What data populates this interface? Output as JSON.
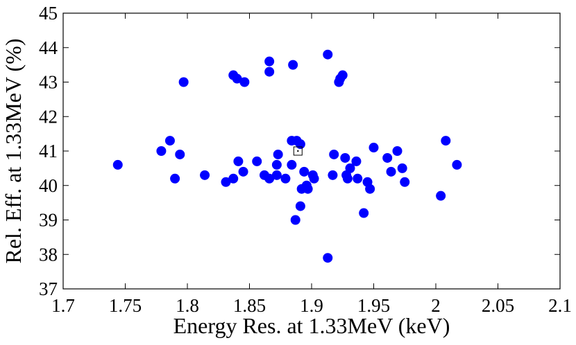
{
  "chart_data": {
    "type": "scatter",
    "x_label": "Energy Res. at 1.33MeV (keV)",
    "y_label": "Rel. Eff. at 1.33MeV (%)",
    "xlim": [
      1.7,
      2.1
    ],
    "ylim": [
      37,
      45
    ],
    "xticks": [
      1.7,
      1.75,
      1.8,
      1.85,
      1.9,
      1.95,
      2,
      2.05,
      2.1
    ],
    "yticks": [
      37,
      38,
      39,
      40,
      41,
      42,
      43,
      44,
      45
    ],
    "grid": false,
    "series": [
      {
        "color": "#0000ff",
        "marker": "circle",
        "x": [
          1.744,
          1.779,
          1.786,
          1.794,
          1.79,
          1.797,
          1.814,
          1.831,
          1.837,
          1.837,
          1.84,
          1.841,
          1.845,
          1.846,
          1.856,
          1.862,
          1.866,
          1.866,
          1.866,
          1.872,
          1.872,
          1.873,
          1.879,
          1.884,
          1.884,
          1.885,
          1.888,
          1.887,
          1.891,
          1.891,
          1.892,
          1.894,
          1.896,
          1.897,
          1.901,
          1.902,
          1.913,
          1.913,
          1.917,
          1.918,
          1.922,
          1.923,
          1.925,
          1.927,
          1.928,
          1.929,
          1.931,
          1.936,
          1.937,
          1.942,
          1.945,
          1.947,
          1.95,
          1.961,
          1.964,
          1.969,
          1.973,
          1.975,
          2.004,
          2.008,
          2.017
        ],
        "values": [
          40.6,
          41.0,
          41.3,
          40.9,
          40.2,
          43.0,
          40.3,
          40.1,
          40.2,
          43.2,
          43.1,
          40.7,
          40.4,
          43.0,
          40.7,
          40.3,
          43.6,
          43.3,
          40.2,
          40.6,
          40.3,
          40.9,
          40.2,
          41.3,
          40.6,
          43.5,
          41.3,
          39.0,
          41.2,
          39.4,
          39.9,
          40.4,
          40.0,
          39.9,
          40.3,
          40.2,
          43.8,
          37.9,
          40.3,
          40.9,
          43.0,
          43.1,
          43.2,
          40.8,
          40.3,
          40.2,
          40.5,
          40.7,
          40.2,
          39.2,
          40.1,
          39.9,
          41.1,
          40.8,
          40.4,
          41.0,
          40.5,
          40.1,
          39.7,
          41.3,
          40.6
        ]
      },
      {
        "color": "#000000",
        "marker": "square",
        "x": [
          1.889
        ],
        "values": [
          41.0
        ]
      }
    ]
  }
}
